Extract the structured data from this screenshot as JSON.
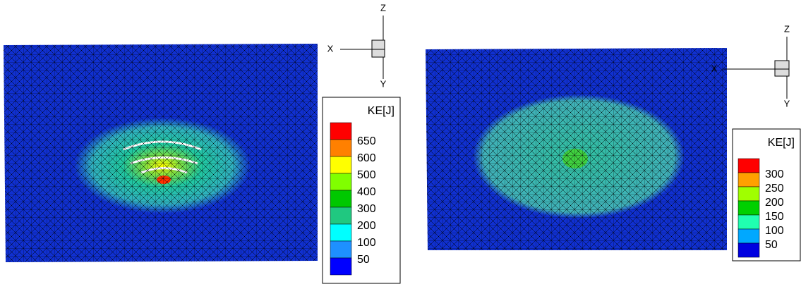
{
  "panels": [
    {
      "axes": {
        "x": "X",
        "y": "Y",
        "z": "Z"
      },
      "legend": {
        "title": "KE[J]",
        "colors": [
          "#ff0000",
          "#ff8000",
          "#ffff00",
          "#80ff00",
          "#00c800",
          "#20c880",
          "#00ffff",
          "#1e90ff",
          "#0000ff"
        ],
        "labels": [
          650,
          600,
          500,
          400,
          300,
          200,
          100,
          50
        ]
      }
    },
    {
      "axes": {
        "x": "X",
        "y": "Y",
        "z": "Z"
      },
      "legend": {
        "title": "KE[J]",
        "colors": [
          "#ff0000",
          "#ffa000",
          "#a0ff00",
          "#00d000",
          "#20ffb0",
          "#00a8ff",
          "#0000e0"
        ],
        "labels": [
          300,
          250,
          200,
          150,
          100,
          50
        ]
      }
    }
  ]
}
